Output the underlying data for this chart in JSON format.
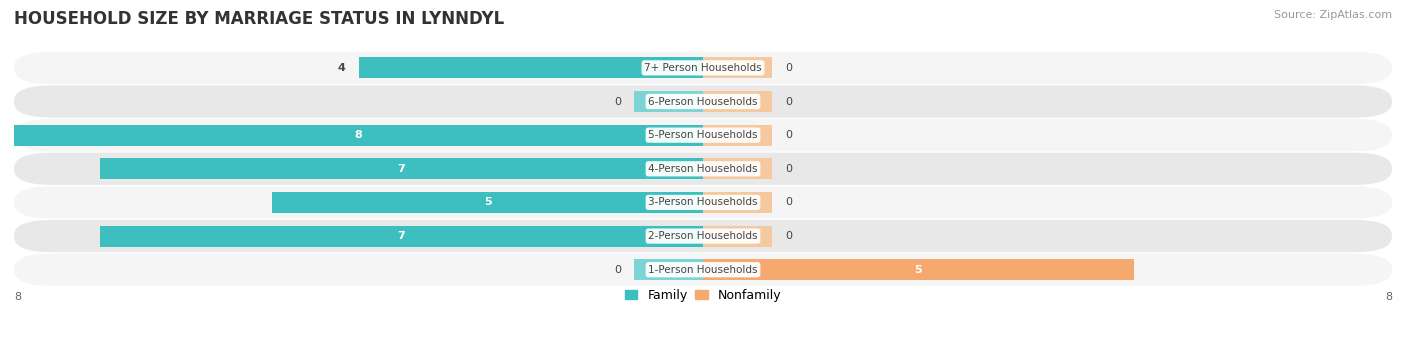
{
  "title": "HOUSEHOLD SIZE BY MARRIAGE STATUS IN LYNNDYL",
  "source": "Source: ZipAtlas.com",
  "categories": [
    "7+ Person Households",
    "6-Person Households",
    "5-Person Households",
    "4-Person Households",
    "3-Person Households",
    "2-Person Households",
    "1-Person Households"
  ],
  "family": [
    4,
    0,
    8,
    7,
    5,
    7,
    0
  ],
  "nonfamily": [
    0,
    0,
    0,
    0,
    0,
    0,
    5
  ],
  "family_color": "#3DBFBF",
  "nonfamily_color": "#F5A96E",
  "nonfamily_stub_color": "#F5C9A0",
  "family_stub_color": "#7DD4D4",
  "row_bg_light": "#F5F5F5",
  "row_bg_dark": "#E8E8E8",
  "xlim_left": -8,
  "xlim_right": 8,
  "max_val": 8,
  "stub_size": 0.8,
  "legend_family": "Family",
  "legend_nonfamily": "Nonfamily",
  "title_fontsize": 12,
  "source_fontsize": 8,
  "bar_height": 0.62
}
